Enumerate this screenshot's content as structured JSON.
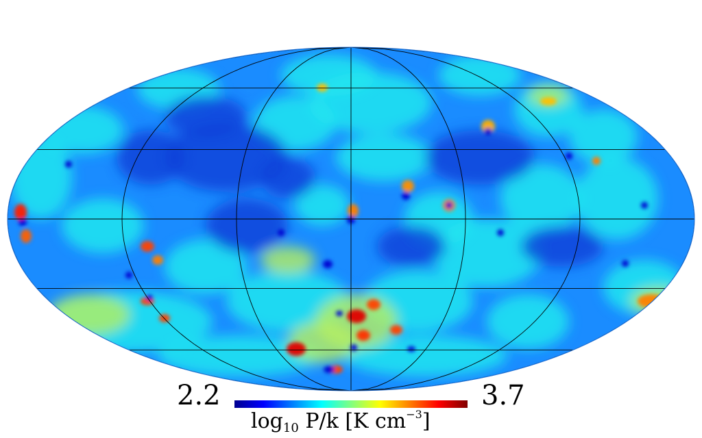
{
  "map": {
    "projection": "Mollweide",
    "graticule": true,
    "colormap": "jet"
  },
  "colorbar": {
    "min_label": "2.2",
    "max_label": "3.7",
    "title_prefix": "log",
    "title_sub": "10",
    "title_mid": " P/k [K cm",
    "title_sup": "−3",
    "title_end": "]",
    "colors": [
      "#00008f",
      "#0000ff",
      "#0080ff",
      "#00ffff",
      "#80ff80",
      "#ffff00",
      "#ff8000",
      "#ff0000",
      "#800000"
    ]
  }
}
